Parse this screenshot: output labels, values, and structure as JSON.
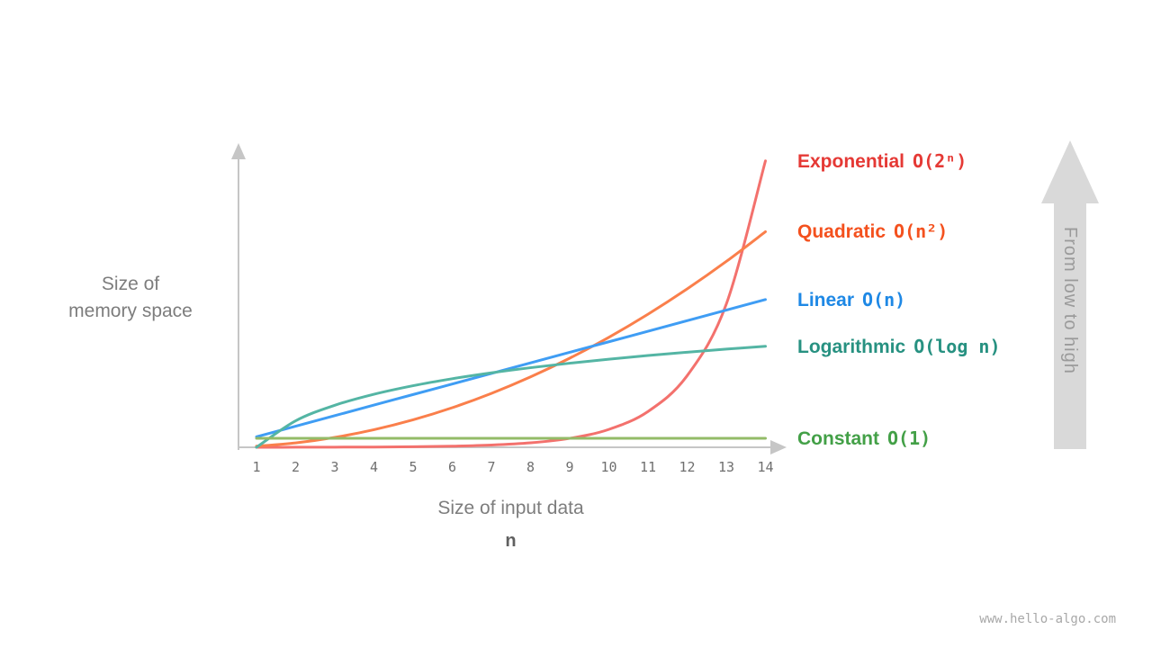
{
  "page": {
    "background": "#ffffff",
    "watermark": "www.hello-algo.com"
  },
  "chart_data": {
    "type": "line",
    "title": "",
    "xlabel": "Size of input data",
    "xlabel_symbol": "n",
    "ylabel_lines": [
      "Size of",
      "memory space"
    ],
    "arrow_label": "From  low to high",
    "x": [
      1,
      2,
      3,
      4,
      5,
      6,
      7,
      8,
      9,
      10,
      11,
      12,
      13,
      14
    ],
    "x_range": [
      1,
      14
    ],
    "grid": false,
    "legend_position": "right-of-curve-ends",
    "axis_color": "#c6c6c6",
    "series": [
      {
        "name": "Exponential",
        "notation": "O(2ⁿ)",
        "values": [
          2,
          4,
          8,
          16,
          32,
          64,
          128,
          256,
          512,
          1024,
          2048,
          4096,
          8192,
          16384
        ],
        "curve_color": "#f3716d",
        "label_color": "#e53935",
        "peak_fraction": 0.95
      },
      {
        "name": "Quadratic",
        "notation": "O(n²)",
        "values": [
          1,
          4,
          9,
          16,
          25,
          36,
          49,
          64,
          81,
          100,
          121,
          144,
          169,
          196
        ],
        "curve_color": "#fa7f4b",
        "label_color": "#f4511e",
        "peak_fraction": 0.715
      },
      {
        "name": "Linear",
        "notation": "O(n)",
        "values": [
          1,
          2,
          3,
          4,
          5,
          6,
          7,
          8,
          9,
          10,
          11,
          12,
          13,
          14
        ],
        "curve_color": "#3f9df4",
        "label_color": "#1e88e5",
        "peak_fraction": 0.49
      },
      {
        "name": "Logarithmic",
        "notation": "O(log n)",
        "values": [
          0,
          1,
          1.585,
          2,
          2.322,
          2.585,
          2.807,
          3,
          3.17,
          3.322,
          3.459,
          3.585,
          3.7,
          3.807
        ],
        "curve_color": "#54b5a4",
        "label_color": "#279181",
        "peak_fraction": 0.335
      },
      {
        "name": "Constant",
        "notation": "O(1)",
        "values": [
          1,
          1,
          1,
          1,
          1,
          1,
          1,
          1,
          1,
          1,
          1,
          1,
          1,
          1
        ],
        "curve_color": "#93bb68",
        "label_color": "#43a047",
        "peak_fraction": 0.03
      }
    ]
  }
}
